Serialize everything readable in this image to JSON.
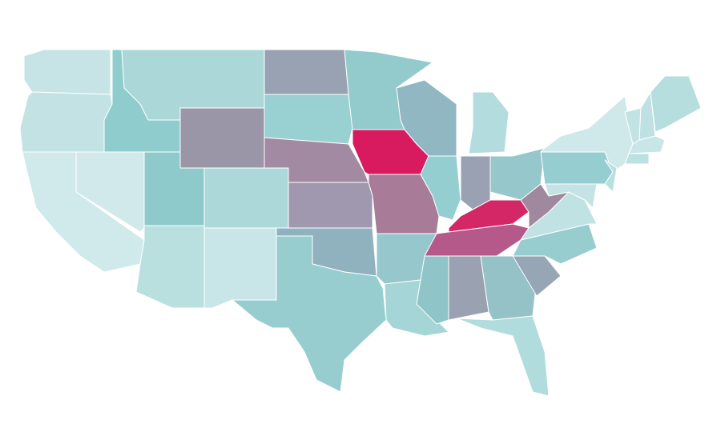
{
  "map": {
    "regions": [
      {
        "color": "#c6e4e6"
      },
      {
        "color": "#c3e2e4"
      },
      {
        "color": "#d0e9eb"
      },
      {
        "color": "#d2e9eb"
      },
      {
        "color": "#8fcccd"
      },
      {
        "color": "#abd7d8"
      },
      {
        "color": "#9b95a8"
      },
      {
        "color": "#8ecacb"
      },
      {
        "color": "#acd8d9"
      },
      {
        "color": "#b9dfdf"
      },
      {
        "color": "#c8e6e7"
      },
      {
        "color": "#98a2b2"
      },
      {
        "color": "#99d0d2"
      },
      {
        "color": "#a38aa3"
      },
      {
        "color": "#9f98ae"
      },
      {
        "color": "#90b2be"
      },
      {
        "color": "#98cdd0"
      },
      {
        "color": "#93cbcd"
      },
      {
        "color": "#d81b5f"
      },
      {
        "color": "#a87b98"
      },
      {
        "color": "#95c7cc"
      },
      {
        "color": "#a5d5d7"
      },
      {
        "color": "#91b7c3"
      },
      {
        "color": "#94ced1"
      },
      {
        "color": "#b2dcde"
      },
      {
        "color": "#9aa1b3"
      },
      {
        "color": "#96c8cb"
      },
      {
        "color": "#d32766"
      },
      {
        "color": "#b5588a"
      },
      {
        "color": "#8fc4c9"
      },
      {
        "color": "#9aa2b2"
      },
      {
        "color": "#94c2c7"
      },
      {
        "color": "#b1dcdd"
      },
      {
        "color": "#97a6b5"
      },
      {
        "color": "#97cdcf"
      },
      {
        "color": "#c0e2e3"
      },
      {
        "color": "#a0889f"
      },
      {
        "color": "#96cdd0"
      },
      {
        "color": "#cfe9ea"
      },
      {
        "color": "#c5e3e4"
      },
      {
        "color": "#b9dfe0"
      },
      {
        "color": "#c2e2e4"
      },
      {
        "color": "#bfe1e3"
      },
      {
        "color": "#b6dedf"
      },
      {
        "color": "#c8e6e7"
      },
      {
        "color": "#bde0e2"
      }
    ]
  }
}
